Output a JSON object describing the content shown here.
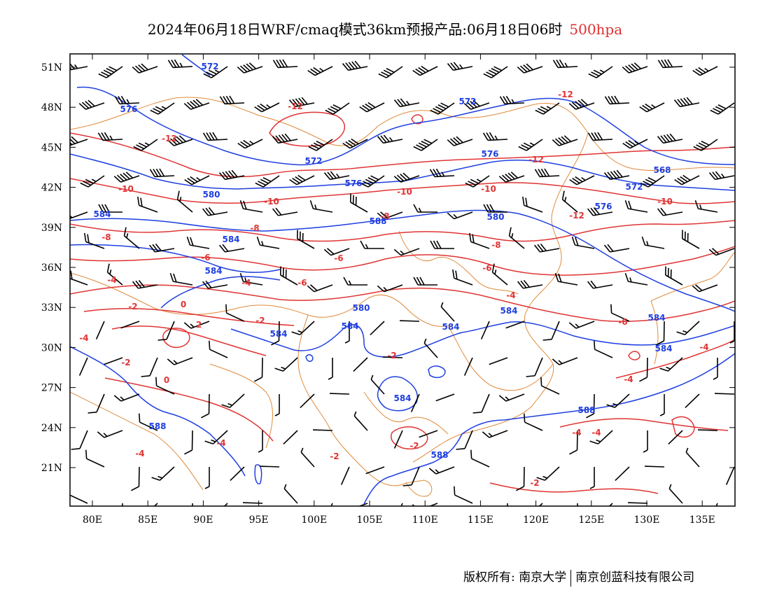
{
  "title": {
    "main": "2024年06月18日WRF/cmaq模式36km预报产品:06月18日06时",
    "level": "500hpa",
    "level_color": "#e03030"
  },
  "map": {
    "lat_labels": [
      "51N",
      "48N",
      "45N",
      "42N",
      "39N",
      "36N",
      "33N",
      "30N",
      "27N",
      "24N",
      "21N"
    ],
    "lon_labels": [
      "80E",
      "85E",
      "90E",
      "95E",
      "100E",
      "105E",
      "110E",
      "115E",
      "120E",
      "125E",
      "130E",
      "135E"
    ],
    "colors": {
      "height_contour": "#1f3fe0",
      "temperature_contour": "#e03434",
      "borders": "#e08a3a",
      "wind_barb": "#000000"
    },
    "height_labels": [
      "572",
      "576",
      "572",
      "572",
      "576",
      "576",
      "568",
      "572",
      "580",
      "576",
      "584",
      "580",
      "584",
      "584",
      "580",
      "584",
      "584",
      "584",
      "584",
      "584",
      "584",
      "588",
      "588",
      "588",
      "588",
      "584"
    ],
    "temp_labels": [
      "-12",
      "-12",
      "-12",
      "-12",
      "-10",
      "-10",
      "-10",
      "-10",
      "-10",
      "-12",
      "-8",
      "-8",
      "-8",
      "-8",
      "-6",
      "-6",
      "-6",
      "-6",
      "-4",
      "-4",
      "-4",
      "-6",
      "-2",
      "-2",
      "0",
      "2",
      "-4",
      "-2",
      "-2",
      "0",
      "-4",
      "-2",
      "-2",
      "-4",
      "-4",
      "-4",
      "-4",
      "-2",
      "-4"
    ]
  },
  "footer": {
    "left": "版权所有: 南京大学",
    "right": "南京创蓝科技有限公司"
  }
}
